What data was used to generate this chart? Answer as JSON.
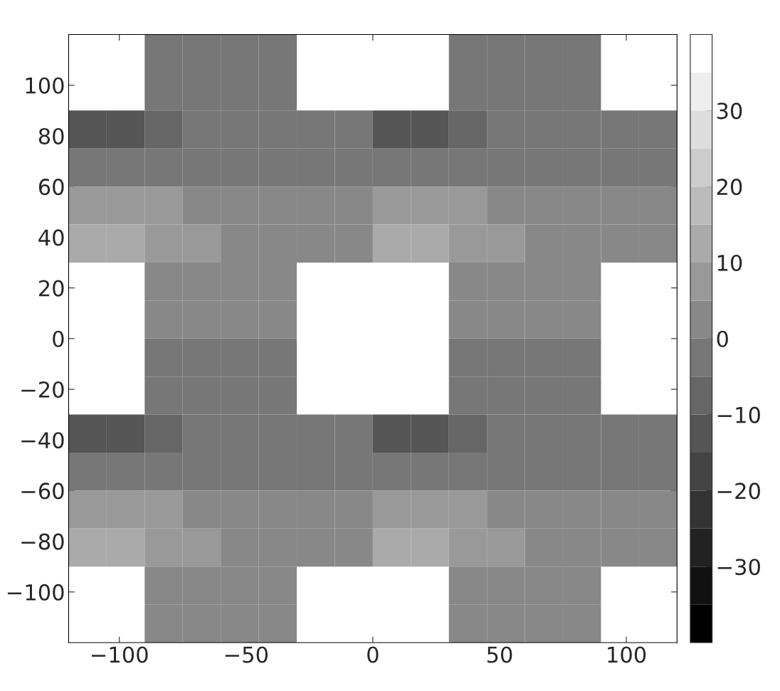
{
  "chart_data": {
    "type": "heatmap",
    "x": [
      -112.5,
      -97.5,
      -82.5,
      -67.5,
      -52.5,
      -37.5,
      -22.5,
      -7.5,
      7.5,
      22.5,
      37.5,
      52.5,
      67.5,
      82.5,
      97.5,
      112.5
    ],
    "y": [
      112.5,
      97.5,
      82.5,
      67.5,
      52.5,
      37.5,
      22.5,
      7.5,
      -7.5,
      -22.5,
      -37.5,
      -52.5,
      -67.5,
      -82.5,
      -97.5,
      -112.5
    ],
    "cells": [
      [
        null,
        null,
        -2,
        -2,
        -2,
        -2,
        null,
        null,
        null,
        null,
        -2,
        -2,
        -2,
        -2,
        null,
        null
      ],
      [
        null,
        null,
        -2,
        -2,
        -2,
        -2,
        null,
        null,
        null,
        null,
        -2,
        -2,
        -2,
        -2,
        null,
        null
      ],
      [
        -12,
        -12,
        -8,
        -5,
        -2,
        -2,
        -2,
        -2,
        -12,
        -12,
        -8,
        -5,
        -2,
        -2,
        -2,
        -2
      ],
      [
        -5,
        -5,
        -5,
        -2,
        -2,
        -2,
        -2,
        -2,
        -5,
        -5,
        -5,
        -2,
        -2,
        -2,
        -2,
        -2
      ],
      [
        5,
        5,
        5,
        2,
        2,
        2,
        2,
        2,
        5,
        5,
        5,
        2,
        2,
        2,
        2,
        2
      ],
      [
        12,
        12,
        8,
        5,
        2,
        2,
        2,
        2,
        12,
        12,
        8,
        5,
        2,
        2,
        2,
        2
      ],
      [
        null,
        null,
        2,
        2,
        2,
        2,
        null,
        null,
        null,
        null,
        2,
        2,
        2,
        2,
        null,
        null
      ],
      [
        null,
        null,
        2,
        2,
        2,
        2,
        null,
        null,
        null,
        null,
        2,
        2,
        2,
        2,
        null,
        null
      ],
      [
        null,
        null,
        -2,
        -2,
        -2,
        -2,
        null,
        null,
        null,
        null,
        -2,
        -2,
        -2,
        -2,
        null,
        null
      ],
      [
        null,
        null,
        -2,
        -2,
        -2,
        -2,
        null,
        null,
        null,
        null,
        -2,
        -2,
        -2,
        -2,
        null,
        null
      ],
      [
        -12,
        -12,
        -8,
        -5,
        -2,
        -2,
        -2,
        -2,
        -12,
        -12,
        -8,
        -5,
        -2,
        -2,
        -2,
        -2
      ],
      [
        -5,
        -5,
        -5,
        -2,
        -2,
        -2,
        -2,
        -2,
        -5,
        -5,
        -5,
        -2,
        -2,
        -2,
        -2,
        -2
      ],
      [
        5,
        5,
        5,
        2,
        2,
        2,
        2,
        2,
        5,
        5,
        5,
        2,
        2,
        2,
        2,
        2
      ],
      [
        12,
        12,
        8,
        5,
        2,
        2,
        2,
        2,
        12,
        12,
        8,
        5,
        2,
        2,
        2,
        2
      ],
      [
        null,
        null,
        2,
        2,
        2,
        2,
        null,
        null,
        null,
        null,
        2,
        2,
        2,
        2,
        null,
        null
      ],
      [
        null,
        null,
        2,
        2,
        2,
        2,
        null,
        null,
        null,
        null,
        2,
        2,
        2,
        2,
        null,
        null
      ]
    ],
    "xlim": [
      -120,
      120
    ],
    "ylim": [
      -120,
      120
    ],
    "xticks": [
      -100,
      -50,
      0,
      50,
      100
    ],
    "yticks": [
      -100,
      -80,
      -60,
      -40,
      -20,
      0,
      20,
      40,
      60,
      80,
      100
    ],
    "clim": [
      -40,
      40
    ],
    "cticks": [
      -30,
      -20,
      -10,
      0,
      10,
      20,
      30
    ]
  }
}
